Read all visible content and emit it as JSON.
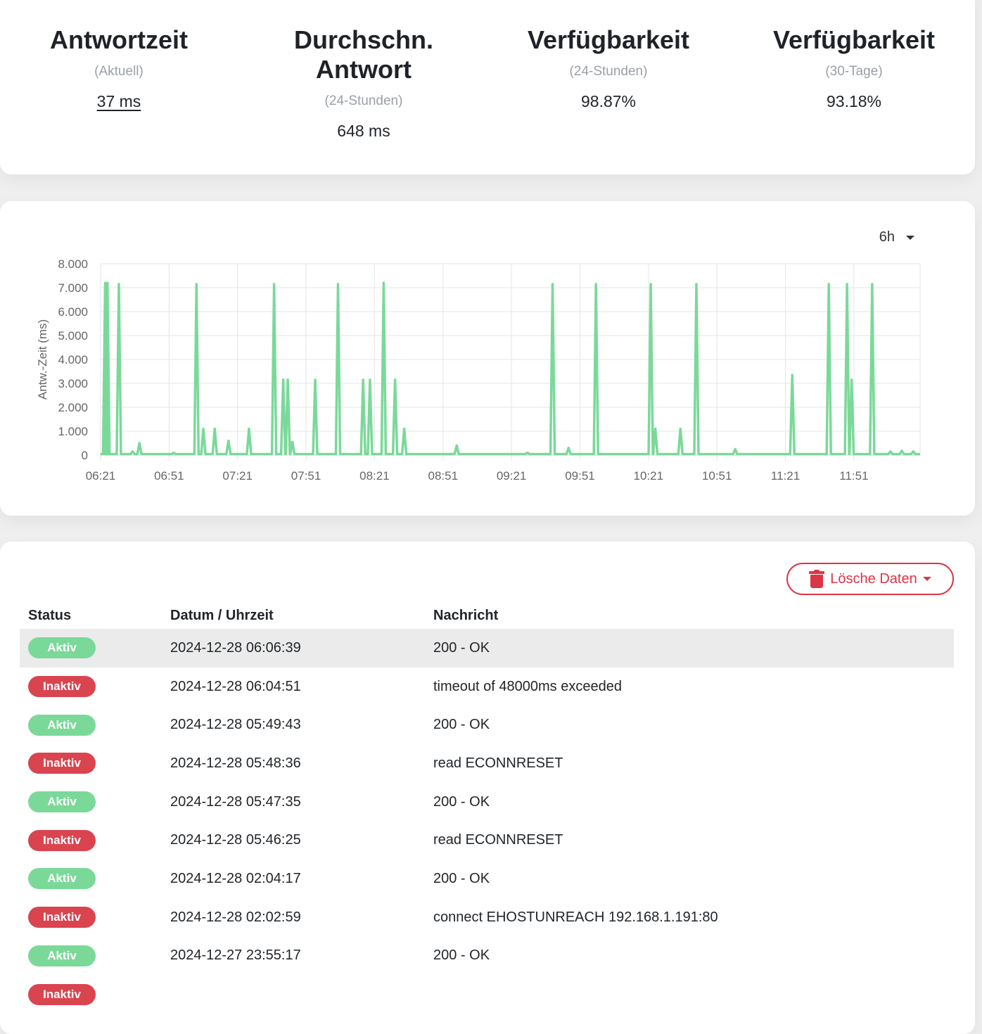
{
  "stats": [
    {
      "title": "Antwortzeit",
      "sub": "(Aktuell)",
      "value": "37 ms"
    },
    {
      "title": "Durchschn. Antwort",
      "sub": "(24-Stunden)",
      "value": "648 ms"
    },
    {
      "title": "Verfügbarkeit",
      "sub": "(24-Stunden)",
      "value": "98.87%"
    },
    {
      "title": "Verfügbarkeit",
      "sub": "(30-Tage)",
      "value": "93.18%"
    }
  ],
  "chart_controls": {
    "period": "6h"
  },
  "chart_data": {
    "type": "line",
    "ylabel": "Antw.-Zeit (ms)",
    "xlabel": "",
    "title": "",
    "ylim": [
      0,
      8000
    ],
    "y_ticks": [
      "0",
      "1.000",
      "2.000",
      "3.000",
      "4.000",
      "5.000",
      "6.000",
      "7.000",
      "8.000"
    ],
    "x_ticks": [
      "06:21",
      "06:51",
      "07:21",
      "07:51",
      "08:21",
      "08:51",
      "09:21",
      "09:51",
      "10:21",
      "10:51",
      "11:21",
      "11:51"
    ],
    "x_range_minutes": [
      381,
      740
    ],
    "line_color": "#7ad999",
    "baseline": 40,
    "spikes": [
      {
        "t": "06:23",
        "v": 7200
      },
      {
        "t": "06:24",
        "v": 7200
      },
      {
        "t": "06:29",
        "v": 7150
      },
      {
        "t": "06:35",
        "v": 150
      },
      {
        "t": "06:38",
        "v": 500
      },
      {
        "t": "06:53",
        "v": 100
      },
      {
        "t": "07:03",
        "v": 7150
      },
      {
        "t": "07:06",
        "v": 1100
      },
      {
        "t": "07:11",
        "v": 1100
      },
      {
        "t": "07:17",
        "v": 600
      },
      {
        "t": "07:26",
        "v": 1100
      },
      {
        "t": "07:37",
        "v": 7150
      },
      {
        "t": "07:41",
        "v": 3150
      },
      {
        "t": "07:43",
        "v": 3150
      },
      {
        "t": "07:45",
        "v": 550
      },
      {
        "t": "07:55",
        "v": 3150
      },
      {
        "t": "08:05",
        "v": 7150
      },
      {
        "t": "08:16",
        "v": 3150
      },
      {
        "t": "08:19",
        "v": 3150
      },
      {
        "t": "08:25",
        "v": 7200
      },
      {
        "t": "08:30",
        "v": 3150
      },
      {
        "t": "08:34",
        "v": 1100
      },
      {
        "t": "08:57",
        "v": 400
      },
      {
        "t": "09:28",
        "v": 100
      },
      {
        "t": "09:39",
        "v": 7150
      },
      {
        "t": "09:46",
        "v": 300
      },
      {
        "t": "09:58",
        "v": 7150
      },
      {
        "t": "10:22",
        "v": 7150
      },
      {
        "t": "10:24",
        "v": 1100
      },
      {
        "t": "10:35",
        "v": 1100
      },
      {
        "t": "10:42",
        "v": 7150
      },
      {
        "t": "10:59",
        "v": 250
      },
      {
        "t": "11:24",
        "v": 3350
      },
      {
        "t": "11:40",
        "v": 7150
      },
      {
        "t": "11:48",
        "v": 7150
      },
      {
        "t": "11:50",
        "v": 3150
      },
      {
        "t": "11:59",
        "v": 7150
      },
      {
        "t": "12:07",
        "v": 150
      },
      {
        "t": "12:12",
        "v": 180
      },
      {
        "t": "12:17",
        "v": 150
      }
    ]
  },
  "events": {
    "clear_button_label": "Lösche Daten",
    "headers": [
      "Status",
      "Datum / Uhrzeit",
      "Nachricht"
    ],
    "rows": [
      {
        "status": "Aktiv",
        "up": true,
        "time": "2024-12-28 06:06:39",
        "msg": "200 - OK"
      },
      {
        "status": "Inaktiv",
        "up": false,
        "time": "2024-12-28 06:04:51",
        "msg": "timeout of 48000ms exceeded"
      },
      {
        "status": "Aktiv",
        "up": true,
        "time": "2024-12-28 05:49:43",
        "msg": "200 - OK"
      },
      {
        "status": "Inaktiv",
        "up": false,
        "time": "2024-12-28 05:48:36",
        "msg": "read ECONNRESET"
      },
      {
        "status": "Aktiv",
        "up": true,
        "time": "2024-12-28 05:47:35",
        "msg": "200 - OK"
      },
      {
        "status": "Inaktiv",
        "up": false,
        "time": "2024-12-28 05:46:25",
        "msg": "read ECONNRESET"
      },
      {
        "status": "Aktiv",
        "up": true,
        "time": "2024-12-28 02:04:17",
        "msg": "200 - OK"
      },
      {
        "status": "Inaktiv",
        "up": false,
        "time": "2024-12-28 02:02:59",
        "msg": "connect EHOSTUNREACH 192.168.1.191:80"
      },
      {
        "status": "Aktiv",
        "up": true,
        "time": "2024-12-27 23:55:17",
        "msg": "200 - OK"
      },
      {
        "status": "Inaktiv",
        "up": false,
        "time": "",
        "msg": ""
      }
    ]
  }
}
